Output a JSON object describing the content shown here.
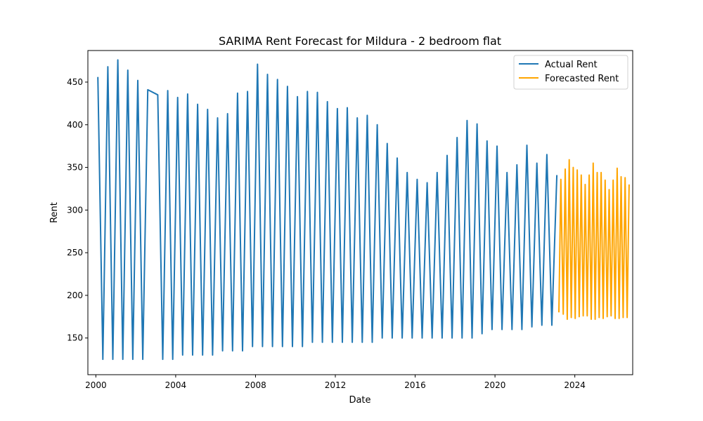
{
  "chart_data": {
    "type": "line",
    "title": "SARIMA Rent Forecast for Mildura - 2 bedroom flat",
    "xlabel": "Date",
    "ylabel": "Rent",
    "xlim": [
      1999.6,
      2026.9
    ],
    "ylim": [
      107,
      487
    ],
    "x_ticks": [
      2000,
      2004,
      2008,
      2012,
      2016,
      2020,
      2024
    ],
    "y_ticks": [
      150,
      200,
      250,
      300,
      350,
      400,
      450
    ],
    "grid": false,
    "legend_position": "top-right",
    "series": [
      {
        "name": "Actual Rent",
        "color": "#1f77b4",
        "points": [
          [
            2000.1,
            456
          ],
          [
            2000.35,
            125
          ],
          [
            2000.6,
            468
          ],
          [
            2000.85,
            125
          ],
          [
            2001.1,
            476
          ],
          [
            2001.35,
            125
          ],
          [
            2001.6,
            464
          ],
          [
            2001.85,
            125
          ],
          [
            2002.1,
            452
          ],
          [
            2002.35,
            125
          ],
          [
            2002.6,
            441
          ],
          [
            2003.1,
            435
          ],
          [
            2003.35,
            125
          ],
          [
            2003.6,
            440
          ],
          [
            2003.85,
            125
          ],
          [
            2004.1,
            432
          ],
          [
            2004.35,
            130
          ],
          [
            2004.6,
            436
          ],
          [
            2004.85,
            130
          ],
          [
            2005.1,
            424
          ],
          [
            2005.35,
            130
          ],
          [
            2005.6,
            418
          ],
          [
            2005.85,
            130
          ],
          [
            2006.1,
            408
          ],
          [
            2006.35,
            135
          ],
          [
            2006.6,
            413
          ],
          [
            2006.85,
            135
          ],
          [
            2007.1,
            437
          ],
          [
            2007.35,
            135
          ],
          [
            2007.6,
            439
          ],
          [
            2007.85,
            140
          ],
          [
            2008.1,
            471
          ],
          [
            2008.35,
            140
          ],
          [
            2008.6,
            459
          ],
          [
            2008.85,
            140
          ],
          [
            2009.1,
            453
          ],
          [
            2009.35,
            140
          ],
          [
            2009.6,
            445
          ],
          [
            2009.85,
            140
          ],
          [
            2010.1,
            433
          ],
          [
            2010.35,
            140
          ],
          [
            2010.6,
            439
          ],
          [
            2010.85,
            145
          ],
          [
            2011.1,
            438
          ],
          [
            2011.35,
            145
          ],
          [
            2011.6,
            427
          ],
          [
            2011.85,
            145
          ],
          [
            2012.1,
            419
          ],
          [
            2012.35,
            145
          ],
          [
            2012.6,
            420
          ],
          [
            2012.85,
            145
          ],
          [
            2013.1,
            408
          ],
          [
            2013.35,
            145
          ],
          [
            2013.6,
            411
          ],
          [
            2013.85,
            145
          ],
          [
            2014.1,
            400
          ],
          [
            2014.35,
            150
          ],
          [
            2014.6,
            378
          ],
          [
            2014.85,
            150
          ],
          [
            2015.1,
            361
          ],
          [
            2015.35,
            150
          ],
          [
            2015.6,
            344
          ],
          [
            2015.85,
            150
          ],
          [
            2016.1,
            336
          ],
          [
            2016.35,
            150
          ],
          [
            2016.6,
            332
          ],
          [
            2016.85,
            150
          ],
          [
            2017.1,
            344
          ],
          [
            2017.35,
            150
          ],
          [
            2017.6,
            364
          ],
          [
            2017.85,
            150
          ],
          [
            2018.1,
            385
          ],
          [
            2018.35,
            150
          ],
          [
            2018.6,
            405
          ],
          [
            2018.85,
            150
          ],
          [
            2019.1,
            401
          ],
          [
            2019.35,
            155
          ],
          [
            2019.6,
            381
          ],
          [
            2019.85,
            160
          ],
          [
            2020.1,
            375
          ],
          [
            2020.35,
            160
          ],
          [
            2020.6,
            344
          ],
          [
            2020.85,
            160
          ],
          [
            2021.1,
            353
          ],
          [
            2021.35,
            160
          ],
          [
            2021.6,
            376
          ],
          [
            2021.85,
            163
          ],
          [
            2022.1,
            355
          ],
          [
            2022.35,
            165
          ],
          [
            2022.6,
            365
          ],
          [
            2022.85,
            165
          ],
          [
            2023.1,
            341
          ]
        ]
      },
      {
        "name": "Forecasted Rent",
        "color": "#ffa500",
        "points": [
          [
            2023.2,
            180
          ],
          [
            2023.3,
            336
          ],
          [
            2023.42,
            178
          ],
          [
            2023.52,
            348
          ],
          [
            2023.62,
            172
          ],
          [
            2023.72,
            359
          ],
          [
            2023.82,
            174
          ],
          [
            2023.92,
            350
          ],
          [
            2024.02,
            173
          ],
          [
            2024.12,
            347
          ],
          [
            2024.22,
            175
          ],
          [
            2024.32,
            341
          ],
          [
            2024.42,
            176
          ],
          [
            2024.52,
            330
          ],
          [
            2024.62,
            176
          ],
          [
            2024.72,
            341
          ],
          [
            2024.82,
            172
          ],
          [
            2024.92,
            355
          ],
          [
            2025.02,
            172
          ],
          [
            2025.12,
            344
          ],
          [
            2025.22,
            174
          ],
          [
            2025.32,
            344
          ],
          [
            2025.42,
            173
          ],
          [
            2025.52,
            335
          ],
          [
            2025.62,
            175
          ],
          [
            2025.72,
            324
          ],
          [
            2025.82,
            176
          ],
          [
            2025.92,
            335
          ],
          [
            2026.02,
            173
          ],
          [
            2026.12,
            349
          ],
          [
            2026.22,
            173
          ],
          [
            2026.32,
            339
          ],
          [
            2026.42,
            174
          ],
          [
            2026.52,
            338
          ],
          [
            2026.62,
            174
          ],
          [
            2026.72,
            330
          ]
        ]
      }
    ]
  }
}
